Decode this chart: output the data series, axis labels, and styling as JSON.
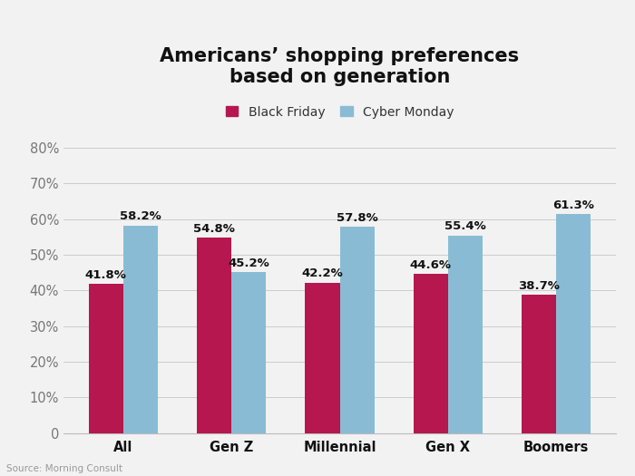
{
  "title_line1": "Americans’ shopping preferences",
  "title_line2": "based on generation",
  "categories": [
    "All",
    "Gen Z",
    "Millennial",
    "Gen X",
    "Boomers"
  ],
  "black_friday": [
    41.8,
    54.8,
    42.2,
    44.6,
    38.7
  ],
  "cyber_monday": [
    58.2,
    45.2,
    57.8,
    55.4,
    61.3
  ],
  "black_friday_color": "#b5174e",
  "cyber_monday_color": "#89bcd4",
  "bg_color": "#f2f2f2",
  "yticks": [
    0,
    10,
    20,
    30,
    40,
    50,
    60,
    70,
    80
  ],
  "ytick_labels": [
    "0",
    "10%",
    "20%",
    "30%",
    "40%",
    "50%",
    "60%",
    "70%",
    "80%"
  ],
  "legend_black_friday": "Black Friday",
  "legend_cyber_monday": "Cyber Monday",
  "source_text": "Source: Morning Consult",
  "bar_width": 0.32,
  "label_fontsize": 9.5,
  "title_fontsize": 15,
  "axis_fontsize": 10.5,
  "legend_fontsize": 10
}
